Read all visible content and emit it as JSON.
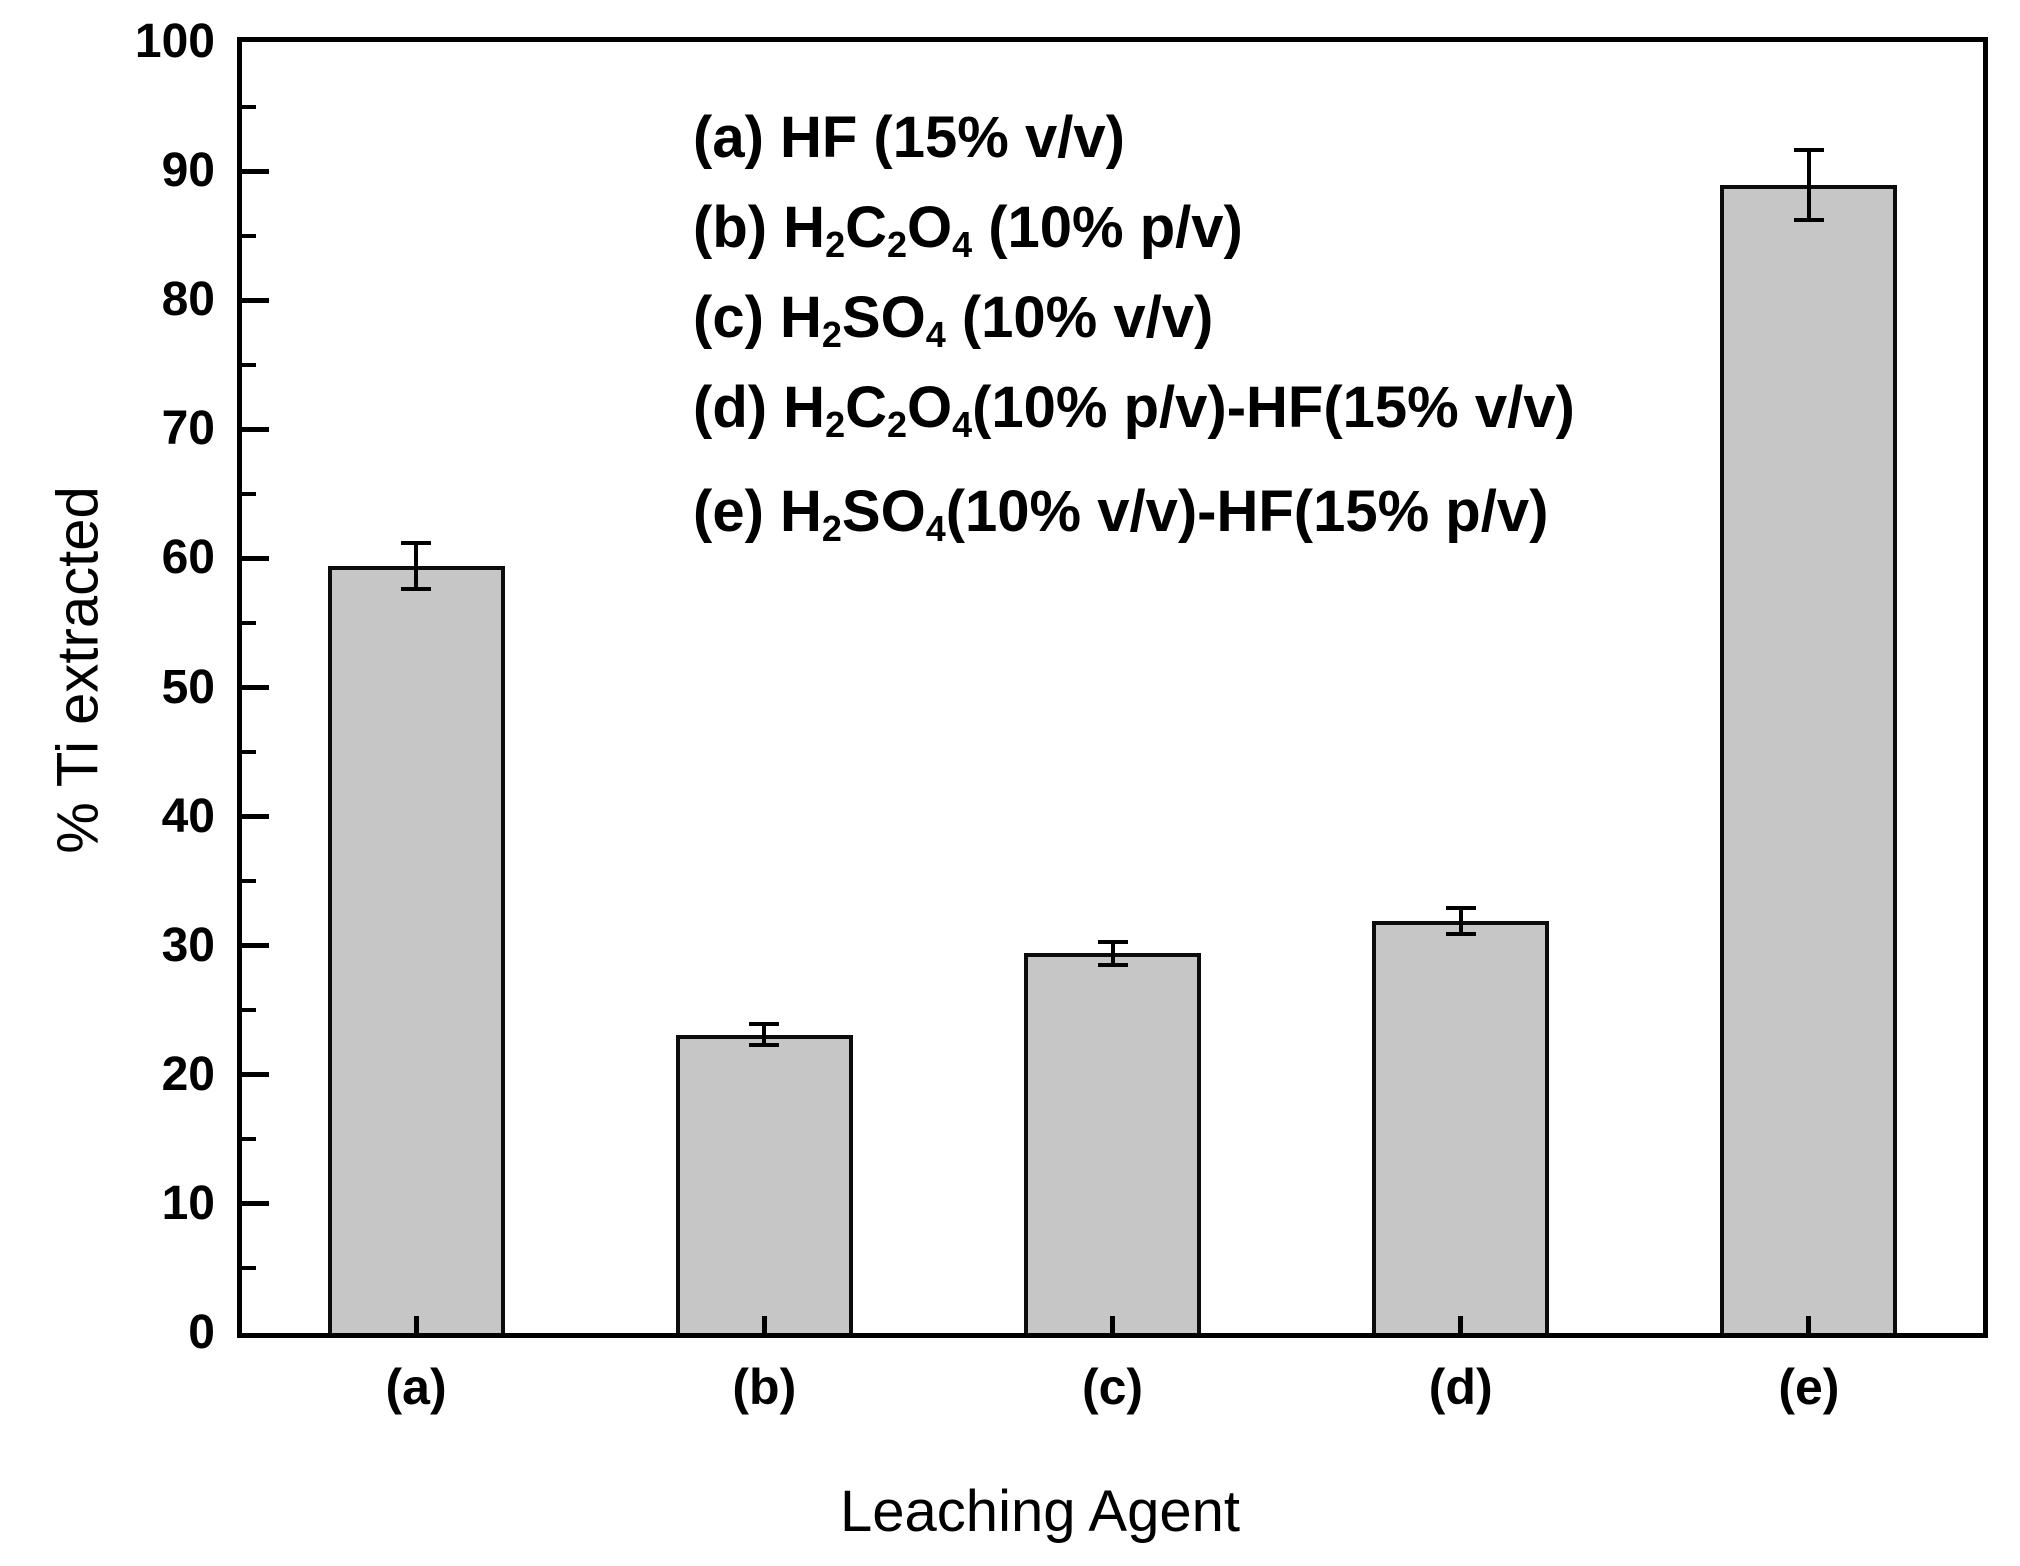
{
  "chart_data": {
    "type": "bar",
    "title": "",
    "xlabel": "Leaching Agent",
    "ylabel": "% Ti extracted",
    "ylim": [
      0,
      100
    ],
    "y_major_ticks": [
      0,
      10,
      20,
      30,
      40,
      50,
      60,
      70,
      80,
      90,
      100
    ],
    "y_minor_step": 5,
    "grid": false,
    "categories": [
      "(a)",
      "(b)",
      "(c)",
      "(d)",
      "(e)"
    ],
    "values": [
      59.4,
      23.1,
      29.4,
      31.9,
      88.9
    ],
    "errors": [
      1.8,
      0.8,
      0.9,
      1.0,
      2.7
    ],
    "bar_color": "#c6c6c6",
    "bar_edge_color": "#0c0c0c",
    "error_color": "#000000",
    "legend_position": "upper-left-inside",
    "legend": [
      {
        "segments": [
          {
            "t": "(a) HF (15% v/v)"
          }
        ]
      },
      {
        "segments": [
          {
            "t": "(b) H"
          },
          {
            "t": "2",
            "sub": true
          },
          {
            "t": "C"
          },
          {
            "t": "2",
            "sub": true
          },
          {
            "t": "O"
          },
          {
            "t": "4",
            "sub": true
          },
          {
            "t": " (10% p/v)"
          }
        ]
      },
      {
        "segments": [
          {
            "t": "(c) H"
          },
          {
            "t": "2",
            "sub": true
          },
          {
            "t": "SO"
          },
          {
            "t": "4",
            "sub": true
          },
          {
            "t": " (10% v/v)"
          }
        ]
      },
      {
        "segments": [
          {
            "t": "(d) H"
          },
          {
            "t": "2",
            "sub": true
          },
          {
            "t": "C"
          },
          {
            "t": "2",
            "sub": true
          },
          {
            "t": "O"
          },
          {
            "t": "4",
            "sub": true
          },
          {
            "t": "(10% p/v)-HF(15% v/v)"
          }
        ]
      },
      {
        "segments": [
          {
            "t": "(e) H"
          },
          {
            "t": "2",
            "sub": true
          },
          {
            "t": "SO"
          },
          {
            "t": "4",
            "sub": true
          },
          {
            "t": "(10% v/v)-HF(15% p/v)"
          }
        ]
      }
    ]
  }
}
